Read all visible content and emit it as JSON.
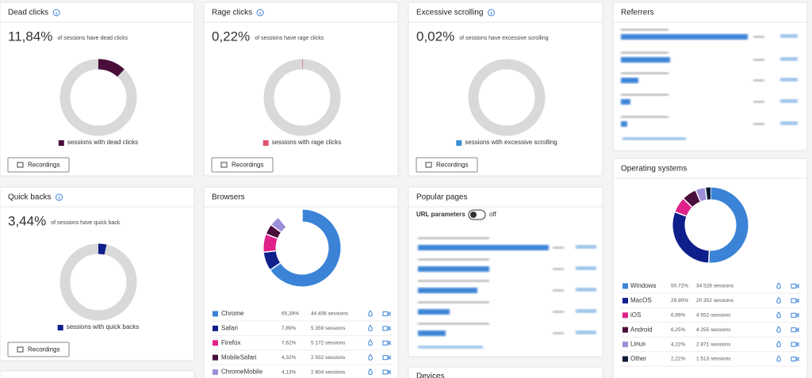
{
  "metrics": [
    {
      "title": "Dead clicks",
      "rate": {
        "value": 11.84,
        "label": "11,84%"
      },
      "description": "of sessions have dead clicks",
      "legend": "sessions with dead clicks",
      "button": "Recordings",
      "color": "#4a0e3a"
    },
    {
      "title": "Rage clicks",
      "rate": {
        "value": 0.22,
        "label": "0,22%"
      },
      "description": "of sessions have rage clicks",
      "legend": "sessions with rage clicks",
      "button": "Recordings",
      "color": "#e0516b"
    },
    {
      "title": "Excessive scrolling",
      "rate": {
        "value": 0.02,
        "label": "0,02%"
      },
      "description": "of sessions have excessive scrolling",
      "legend": "sessions with excessive scrolling",
      "button": "Recordings",
      "color": "#3a8fd1"
    },
    {
      "title": "Quick backs",
      "rate": {
        "value": 3.44,
        "label": "3,44%"
      },
      "description": "of sessions have quick back",
      "legend": "sessions with quick backs",
      "button": "Recordings",
      "color": "#0e1f8c"
    }
  ],
  "browsers": {
    "title": "Browsers",
    "rows": [
      {
        "name": "Chrome",
        "share": {
          "value": 65.39,
          "label": "65,39%"
        },
        "sessions": {
          "value": 44406,
          "label": "44 406 sessions"
        },
        "color": "#3b83d6"
      },
      {
        "name": "Safari",
        "share": {
          "value": 7.89,
          "label": "7,89%"
        },
        "sessions": {
          "value": 5359,
          "label": "5 359 sessions"
        },
        "color": "#0e1f8c"
      },
      {
        "name": "Firefox",
        "share": {
          "value": 7.62,
          "label": "7,62%"
        },
        "sessions": {
          "value": 5172,
          "label": "5 172 sessions"
        },
        "color": "#e0218a"
      },
      {
        "name": "MobileSafari",
        "share": {
          "value": 4.32,
          "label": "4,32%"
        },
        "sessions": {
          "value": 2932,
          "label": "2 932 sessions"
        },
        "color": "#4a0e3a"
      },
      {
        "name": "ChromeMobile",
        "share": {
          "value": 4.13,
          "label": "4,13%"
        },
        "sessions": {
          "value": 2804,
          "label": "2 804 sessions"
        },
        "color": "#9d8fd8"
      }
    ]
  },
  "operating_systems": {
    "title": "Operating systems",
    "rows": [
      {
        "name": "Windows",
        "share": {
          "value": 50.72,
          "label": "50,72%"
        },
        "sessions": {
          "value": 34528,
          "label": "34 528 sessions"
        },
        "color": "#3b83d6"
      },
      {
        "name": "MacOS",
        "share": {
          "value": 29.9,
          "label": "29,90%"
        },
        "sessions": {
          "value": 20352,
          "label": "20 352 sessions"
        },
        "color": "#0e1f8c"
      },
      {
        "name": "iOS",
        "share": {
          "value": 6.69,
          "label": "6,69%"
        },
        "sessions": {
          "value": 4552,
          "label": "4 552 sessions"
        },
        "color": "#e0218a"
      },
      {
        "name": "Android",
        "share": {
          "value": 6.25,
          "label": "6,25%"
        },
        "sessions": {
          "value": 4255,
          "label": "4 255 sessions"
        },
        "color": "#4a0e3a"
      },
      {
        "name": "Linux",
        "share": {
          "value": 4.22,
          "label": "4,22%"
        },
        "sessions": {
          "value": 2871,
          "label": "2 871 sessions"
        },
        "color": "#9d8fd8"
      },
      {
        "name": "Other",
        "share": {
          "value": 2.22,
          "label": "2,22%"
        },
        "sessions": {
          "value": 1513,
          "label": "1 513 sessions"
        },
        "color": "#0b1a33"
      }
    ]
  },
  "referrers": {
    "title": "Referrers"
  },
  "popular_pages": {
    "title": "Popular pages",
    "toggle_label": "URL parameters",
    "toggle_state": "off"
  },
  "devices": {
    "title": "Devices"
  }
}
